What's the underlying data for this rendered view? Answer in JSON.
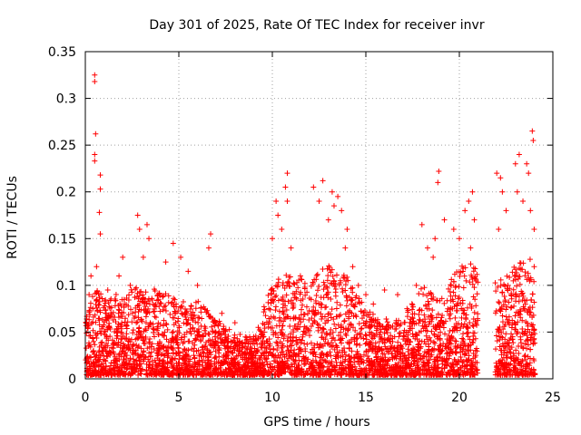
{
  "chart_data": {
    "type": "scatter",
    "title": "Day 301 of 2025, Rate Of TEC Index for receiver invr",
    "xlabel": "GPS time / hours",
    "ylabel": "ROTI / TECUs",
    "xlim": [
      0,
      25
    ],
    "ylim": [
      0,
      0.35
    ],
    "xticks": [
      0,
      5,
      10,
      15,
      20,
      25
    ],
    "xtick_labels": [
      "0",
      "5",
      "10",
      "15",
      "20",
      "25"
    ],
    "yticks": [
      0,
      0.05,
      0.1,
      0.15,
      0.2,
      0.25,
      0.3,
      0.35
    ],
    "ytick_labels": [
      "0",
      "0.05",
      "0.1",
      "0.15",
      "0.2",
      "0.25",
      "0.3",
      "0.35"
    ],
    "grid": true,
    "marker": "+",
    "color": "#ff0000",
    "data_gaps_hours": [
      [
        21.0,
        21.9
      ]
    ],
    "series": [
      {
        "name": "ROTI",
        "points": [
          [
            0.5,
            0.325
          ],
          [
            0.5,
            0.318
          ],
          [
            0.55,
            0.262
          ],
          [
            0.5,
            0.24
          ],
          [
            0.5,
            0.233
          ],
          [
            0.8,
            0.218
          ],
          [
            0.8,
            0.203
          ],
          [
            0.75,
            0.178
          ],
          [
            0.8,
            0.155
          ],
          [
            0.6,
            0.12
          ],
          [
            0.3,
            0.11
          ],
          [
            0.2,
            0.09
          ],
          [
            1.2,
            0.095
          ],
          [
            1.8,
            0.11
          ],
          [
            2.0,
            0.13
          ],
          [
            2.4,
            0.1
          ],
          [
            2.8,
            0.175
          ],
          [
            2.9,
            0.16
          ],
          [
            3.1,
            0.13
          ],
          [
            3.3,
            0.165
          ],
          [
            3.4,
            0.15
          ],
          [
            4.3,
            0.125
          ],
          [
            4.7,
            0.145
          ],
          [
            5.1,
            0.13
          ],
          [
            5.5,
            0.115
          ],
          [
            6.0,
            0.1
          ],
          [
            6.7,
            0.155
          ],
          [
            6.6,
            0.14
          ],
          [
            7.3,
            0.07
          ],
          [
            8.0,
            0.06
          ],
          [
            9.0,
            0.045
          ],
          [
            10.2,
            0.19
          ],
          [
            10.3,
            0.175
          ],
          [
            10.0,
            0.15
          ],
          [
            10.8,
            0.22
          ],
          [
            10.7,
            0.205
          ],
          [
            10.8,
            0.19
          ],
          [
            10.5,
            0.16
          ],
          [
            11.0,
            0.14
          ],
          [
            11.5,
            0.11
          ],
          [
            12.2,
            0.205
          ],
          [
            12.7,
            0.212
          ],
          [
            12.5,
            0.19
          ],
          [
            13.0,
            0.17
          ],
          [
            13.2,
            0.2
          ],
          [
            13.3,
            0.185
          ],
          [
            13.5,
            0.195
          ],
          [
            13.7,
            0.18
          ],
          [
            14.0,
            0.16
          ],
          [
            13.9,
            0.14
          ],
          [
            14.3,
            0.12
          ],
          [
            14.6,
            0.1
          ],
          [
            15.0,
            0.09
          ],
          [
            15.4,
            0.08
          ],
          [
            16.0,
            0.095
          ],
          [
            16.7,
            0.09
          ],
          [
            17.2,
            0.075
          ],
          [
            17.7,
            0.1
          ],
          [
            18.0,
            0.165
          ],
          [
            18.3,
            0.14
          ],
          [
            18.6,
            0.13
          ],
          [
            18.7,
            0.15
          ],
          [
            18.9,
            0.222
          ],
          [
            18.85,
            0.21
          ],
          [
            19.2,
            0.17
          ],
          [
            19.7,
            0.16
          ],
          [
            20.0,
            0.15
          ],
          [
            20.3,
            0.18
          ],
          [
            20.5,
            0.19
          ],
          [
            20.7,
            0.2
          ],
          [
            20.8,
            0.17
          ],
          [
            20.6,
            0.14
          ],
          [
            22.0,
            0.22
          ],
          [
            22.2,
            0.215
          ],
          [
            22.3,
            0.2
          ],
          [
            22.5,
            0.18
          ],
          [
            22.1,
            0.16
          ],
          [
            22.6,
            0.1
          ],
          [
            23.0,
            0.23
          ],
          [
            23.1,
            0.2
          ],
          [
            23.2,
            0.24
          ],
          [
            23.4,
            0.19
          ],
          [
            23.6,
            0.23
          ],
          [
            23.7,
            0.22
          ],
          [
            23.9,
            0.265
          ],
          [
            23.95,
            0.255
          ],
          [
            23.8,
            0.18
          ],
          [
            24.0,
            0.16
          ],
          [
            24.0,
            0.12
          ]
        ]
      }
    ]
  }
}
